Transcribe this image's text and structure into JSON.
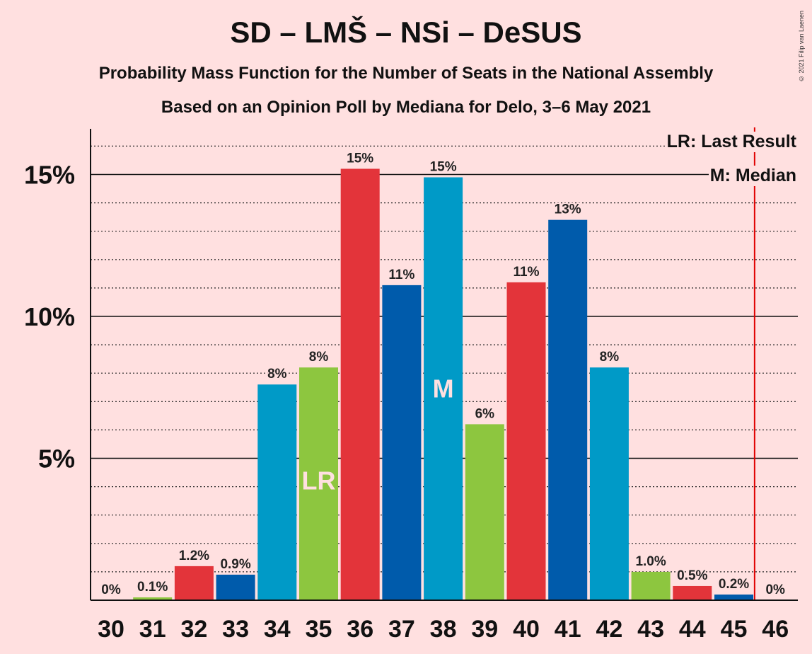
{
  "header": {
    "title": "SD – LMŠ – NSi – DeSUS",
    "subtitle": "Probability Mass Function for the Number of Seats in the National Assembly",
    "subtitle2": "Based on an Opinion Poll by Mediana for Delo, 3–6 May 2021",
    "copyright": "© 2021 Filip van Laenen"
  },
  "legend": {
    "last_result": "LR: Last Result",
    "median": "M: Median"
  },
  "colors": {
    "background": "#ffe0e0",
    "red": "#e3343a",
    "blue": "#009ac7",
    "darkblue": "#005bab",
    "green": "#8dc63f",
    "last_result_line": "#e00000"
  },
  "chart_data": {
    "type": "bar",
    "categories": [
      "30",
      "31",
      "32",
      "33",
      "34",
      "35",
      "36",
      "37",
      "38",
      "39",
      "40",
      "41",
      "42",
      "43",
      "44",
      "45",
      "46"
    ],
    "values": [
      0,
      0.1,
      1.2,
      0.9,
      7.6,
      8.2,
      15.2,
      11.1,
      14.9,
      6.2,
      11.2,
      13.4,
      8.2,
      1.0,
      0.5,
      0.2,
      0
    ],
    "data_labels": [
      "0%",
      "0.1%",
      "1.2%",
      "0.9%",
      "8%",
      "8%",
      "15%",
      "11%",
      "15%",
      "6%",
      "11%",
      "13%",
      "8%",
      "1.0%",
      "0.5%",
      "0.2%",
      "0%"
    ],
    "bar_colors": [
      "red",
      "green",
      "red",
      "darkblue",
      "blue",
      "green",
      "red",
      "darkblue",
      "blue",
      "green",
      "red",
      "darkblue",
      "blue",
      "green",
      "red",
      "darkblue",
      "red"
    ],
    "y_ticks": [
      {
        "value": 5,
        "label": "5%"
      },
      {
        "value": 10,
        "label": "10%"
      },
      {
        "value": 15,
        "label": "15%"
      }
    ],
    "ylim": [
      0,
      16.6
    ],
    "minor_grid_step": 1,
    "last_result": {
      "category": "35",
      "label": "LR"
    },
    "median": {
      "category": "38",
      "label": "M"
    },
    "last_result_line_after": "45",
    "unit": "%"
  }
}
